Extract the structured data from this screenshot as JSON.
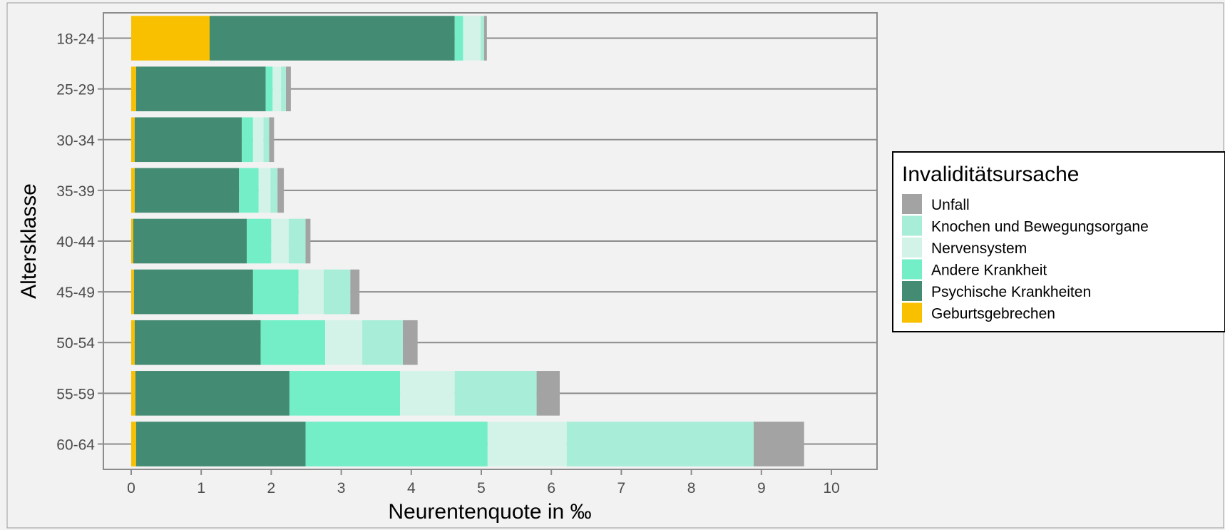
{
  "chart_data": {
    "type": "bar",
    "orientation": "horizontal",
    "stacked": true,
    "xlabel": "Neurentenquote in ‰",
    "ylabel": "Altersklasse",
    "xlim": [
      0,
      10.5
    ],
    "xticks": [
      0,
      1,
      2,
      3,
      4,
      5,
      6,
      7,
      8,
      9,
      10
    ],
    "grid": true,
    "legend_position": "right",
    "legend_title": "Invaliditätsursache",
    "categories": [
      "18-24",
      "25-29",
      "30-34",
      "35-39",
      "40-44",
      "45-49",
      "50-54",
      "55-59",
      "60-64"
    ],
    "series": [
      {
        "name": "Geburtsgebrechen",
        "color": "#f9c000",
        "values": [
          1.12,
          0.07,
          0.05,
          0.05,
          0.03,
          0.04,
          0.05,
          0.06,
          0.07
        ]
      },
      {
        "name": "Psychische Krankheiten",
        "color": "#448b73",
        "values": [
          3.5,
          1.85,
          1.53,
          1.49,
          1.62,
          1.7,
          1.8,
          2.2,
          2.42
        ]
      },
      {
        "name": "Andere Krankheit",
        "color": "#73eec7",
        "values": [
          0.12,
          0.1,
          0.16,
          0.28,
          0.35,
          0.65,
          0.92,
          1.58,
          2.6
        ]
      },
      {
        "name": "Nervensystem",
        "color": "#d4f3e8",
        "values": [
          0.25,
          0.12,
          0.15,
          0.17,
          0.25,
          0.36,
          0.53,
          0.78,
          1.13
        ]
      },
      {
        "name": "Knochen und Bewegungsorgane",
        "color": "#a8edd7",
        "values": [
          0.05,
          0.07,
          0.08,
          0.1,
          0.24,
          0.38,
          0.58,
          1.17,
          2.67
        ]
      },
      {
        "name": "Unfall",
        "color": "#a3a3a3",
        "values": [
          0.04,
          0.07,
          0.07,
          0.09,
          0.07,
          0.13,
          0.21,
          0.33,
          0.72
        ]
      }
    ],
    "legend_order": [
      "Unfall",
      "Knochen und Bewegungsorgane",
      "Nervensystem",
      "Andere Krankheit",
      "Psychische Krankheiten",
      "Geburtsgebrechen"
    ]
  }
}
